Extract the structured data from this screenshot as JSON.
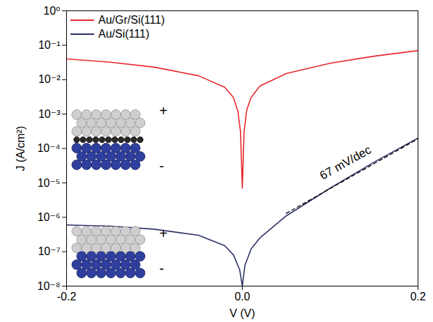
{
  "chart_data": {
    "type": "line",
    "xlabel": "V (V)",
    "ylabel": "J (A/cm²)",
    "log": "y",
    "grid": false,
    "legend": "top-left",
    "xlim": [
      -0.2,
      0.2
    ],
    "xticks": [
      -0.2,
      {
        "value": 0,
        "label": "0.0"
      },
      0.2
    ],
    "ylim": [
      1e-08,
      1
    ],
    "yticks": [
      {
        "value": 1e-08,
        "label": "10⁻⁸"
      },
      {
        "value": 1e-07,
        "label": "10⁻⁷"
      },
      {
        "value": 1e-06,
        "label": "10⁻⁶"
      },
      {
        "value": 1e-05,
        "label": "10⁻⁵"
      },
      {
        "value": 0.0001,
        "label": "10⁻⁴"
      },
      {
        "value": 0.001,
        "label": "10⁻³"
      },
      {
        "value": 0.01,
        "label": "10⁻²"
      },
      {
        "value": 0.1,
        "label": "10⁻¹"
      },
      {
        "value": 1,
        "label": "10⁰"
      }
    ],
    "series": [
      {
        "name": "Au/Gr/Si(111)",
        "color": "#e8262b",
        "x": [
          -0.2,
          -0.15,
          -0.1,
          -0.05,
          -0.02,
          -0.01,
          -0.005,
          -0.002,
          0,
          0.002,
          0.005,
          0.01,
          0.02,
          0.05,
          0.1,
          0.15,
          0.2
        ],
        "values": [
          0.04,
          0.032,
          0.023,
          0.013,
          0.006,
          0.003,
          0.0012,
          0.0003,
          7e-06,
          0.0003,
          0.0013,
          0.003,
          0.0065,
          0.015,
          0.03,
          0.048,
          0.07
        ]
      },
      {
        "name": "Au/Si(111)",
        "color": "#2b3165",
        "x": [
          -0.2,
          -0.15,
          -0.1,
          -0.05,
          -0.02,
          -0.01,
          -0.003,
          0,
          0.003,
          0.01,
          0.02,
          0.05,
          0.1,
          0.15,
          0.2
        ],
        "values": [
          6e-07,
          5.5e-07,
          4.5e-07,
          3e-07,
          1.5e-07,
          8e-08,
          3e-08,
          1e-08,
          4e-08,
          1.2e-07,
          2.5e-07,
          1.1e-06,
          7e-06,
          4e-05,
          0.0002
        ]
      }
    ],
    "fit_line": {
      "x": [
        0.05,
        0.2
      ],
      "values": [
        1.3e-06,
        0.00019
      ],
      "color": "#000000",
      "line_style": "dashed"
    },
    "annotations": [
      {
        "text": "67 mV/dec",
        "x": 0.12,
        "y": 3e-05
      },
      {
        "text": "+",
        "x": -0.094,
        "y": 0.0011
      },
      {
        "text": "-",
        "x": -0.094,
        "y": 2.8e-05
      },
      {
        "text": "+",
        "x": -0.094,
        "y": 3e-07
      },
      {
        "text": "-",
        "x": -0.094,
        "y": 3e-08
      }
    ]
  }
}
